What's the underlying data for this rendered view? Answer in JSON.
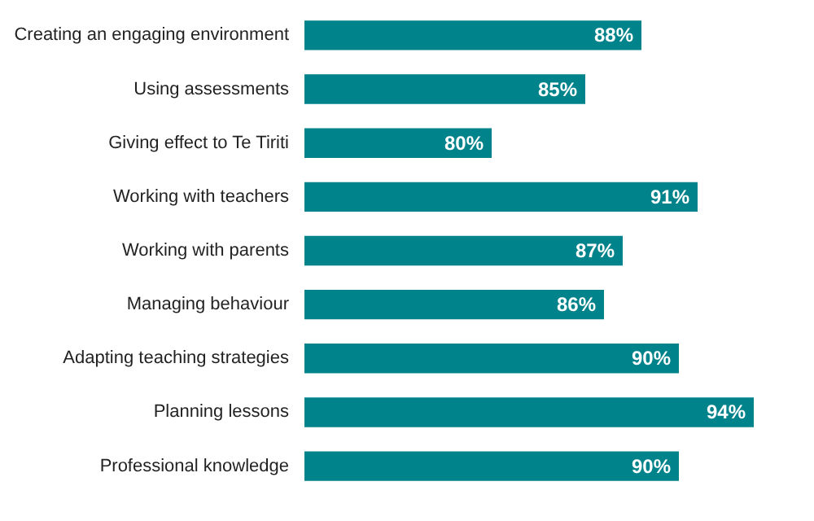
{
  "chart_data": {
    "type": "bar",
    "orientation": "horizontal",
    "categories": [
      "Creating an engaging environment",
      "Using assessments",
      "Giving effect to Te Tiriti",
      "Working with teachers",
      "Working with parents",
      "Managing behaviour",
      "Adapting teaching strategies",
      "Planning lessons",
      "Professional knowledge"
    ],
    "values": [
      88,
      85,
      80,
      91,
      87,
      86,
      90,
      94,
      90
    ],
    "value_labels": [
      "88%",
      "85%",
      "80%",
      "91%",
      "87%",
      "86%",
      "90%",
      "94%",
      "90%"
    ],
    "color": "#00838a",
    "xlim": [
      70,
      94
    ],
    "tick_labels": "y"
  }
}
